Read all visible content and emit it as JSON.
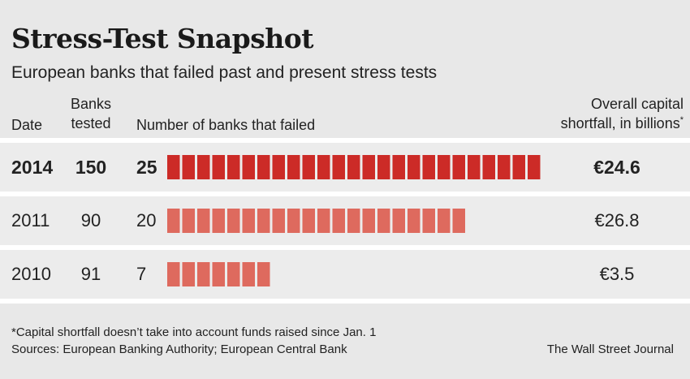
{
  "title": "Stress-Test Snapshot",
  "subtitle": "European banks that failed past and present stress tests",
  "headers": {
    "date": "Date",
    "tested_line1": "Banks",
    "tested_line2": "tested",
    "failed": "Number of banks that failed",
    "shortfall_line1": "Overall capital",
    "shortfall_line2": "shortfall, in billions",
    "shortfall_mark": "*"
  },
  "rows": [
    {
      "date": "2014",
      "tested": "150",
      "failed": "25",
      "shortfall": "€24.6"
    },
    {
      "date": "2011",
      "tested": "90",
      "failed": "20",
      "shortfall": "€26.8"
    },
    {
      "date": "2010",
      "tested": "91",
      "failed": "7",
      "shortfall": "€3.5"
    }
  ],
  "colors": {
    "highlight": "#cc2b27",
    "past": "#de6a5e"
  },
  "footnote": "*Capital shortfall doesn’t take into account funds raised since Jan. 1",
  "sources": "Sources: European Banking Authority; European Central Bank",
  "credit": "The Wall Street Journal",
  "chart_data": {
    "type": "bar",
    "categories": [
      "2014",
      "2011",
      "2010"
    ],
    "series": [
      {
        "values": [
          25,
          20,
          7
        ]
      }
    ],
    "banks_tested": [
      150,
      90,
      91
    ],
    "capital_shortfall_billions_eur": [
      24.6,
      26.8,
      3.5
    ],
    "title": "Stress-Test Snapshot",
    "subtitle": "European banks that failed past and present stress tests"
  }
}
